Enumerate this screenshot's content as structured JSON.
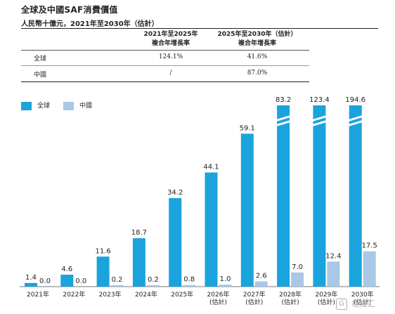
{
  "title": "全球及中國SAF消費價值",
  "subtitle": "人民幣十億元，2021年至2030年（估計）",
  "table": {
    "headers": [
      [
        "2021年至2025年",
        "複合年增長率"
      ],
      [
        "2025年至2030年（估計）",
        "複合年增長率"
      ]
    ],
    "rows": [
      {
        "label": "全球",
        "cagr_2021_2025": "124.1%",
        "cagr_2025_2030": "41.6%"
      },
      {
        "label": "中國",
        "cagr_2021_2025": "/",
        "cagr_2025_2030": "87.0%"
      }
    ]
  },
  "colors": {
    "global": "#1aa3dd",
    "china": "#a8c8e6",
    "text": "#222222"
  },
  "chart_data": {
    "type": "bar",
    "categories": [
      [
        "2021年"
      ],
      [
        "2022年"
      ],
      [
        "2023年"
      ],
      [
        "2024年"
      ],
      [
        "2025年"
      ],
      [
        "2026年",
        "(估計)"
      ],
      [
        "2027年",
        "(估計)"
      ],
      [
        "2028年",
        "(估計)"
      ],
      [
        "2029年",
        "(估計)"
      ],
      [
        "2030年",
        "(估計)"
      ]
    ],
    "series": [
      {
        "name": "全球",
        "values": [
          1.4,
          4.6,
          11.6,
          18.7,
          34.2,
          44.1,
          59.1,
          83.2,
          123.4,
          194.6
        ],
        "labels": [
          "1.4",
          "4.6",
          "11.6",
          "18.7",
          "34.2",
          "44.1",
          "59.1",
          "83.2",
          "123.4",
          "194.6"
        ]
      },
      {
        "name": "中國",
        "values": [
          0.0,
          0.0,
          0.2,
          0.2,
          0.8,
          1.0,
          2.6,
          7.0,
          12.4,
          17.5
        ],
        "labels": [
          "0.0",
          "0.0",
          "0.2",
          "0.2",
          "0.8",
          "1.0",
          "2.6",
          "7.0",
          "12.4",
          "17.5"
        ]
      }
    ],
    "axis_break": true,
    "legend_position": "top-left",
    "grid": false,
    "xlabel": "",
    "ylabel": ""
  },
  "watermark": {
    "logo_glyph": "G",
    "text": "格隆汇"
  }
}
